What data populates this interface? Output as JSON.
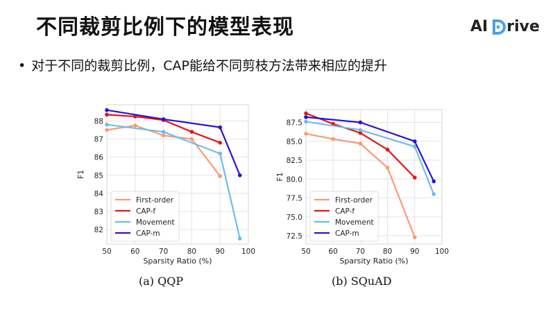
{
  "slide": {
    "title": "不同裁剪比例下的模型表现",
    "bullet": "对于不同的裁剪比例，CAP能给不同剪枝方法带来相应的提升",
    "logo_text_left": "AI",
    "logo_text_right": "rive",
    "logo_color": "#4aa0e6"
  },
  "chart_data": [
    {
      "type": "line",
      "caption": "(a)  QQP",
      "xlabel": "Sparsity Ratio (%)",
      "ylabel": "F1",
      "xlim": [
        50,
        100
      ],
      "ylim": [
        81.2,
        88.9
      ],
      "xticks": [
        50,
        60,
        70,
        80,
        90,
        100
      ],
      "yticks": [
        82,
        83,
        84,
        85,
        86,
        87,
        88
      ],
      "grid": true,
      "legend_position": "bottom-left",
      "series": [
        {
          "name": "First-order",
          "color": "#fa9a75",
          "x": [
            50,
            60,
            70,
            80,
            90
          ],
          "y": [
            87.5,
            87.75,
            87.2,
            87.0,
            84.95
          ]
        },
        {
          "name": "CAP-f",
          "color": "#e81416",
          "x": [
            50,
            60,
            70,
            80,
            90
          ],
          "y": [
            88.35,
            88.25,
            88.05,
            87.4,
            86.8
          ]
        },
        {
          "name": "Movement",
          "color": "#6cbde9",
          "x": [
            50,
            70,
            90,
            97
          ],
          "y": [
            87.8,
            87.4,
            86.2,
            81.5
          ]
        },
        {
          "name": "CAP-m",
          "color": "#2a11d9",
          "x": [
            50,
            70,
            90,
            97
          ],
          "y": [
            88.6,
            88.1,
            87.65,
            85.0
          ]
        }
      ]
    },
    {
      "type": "line",
      "caption": "(b)  SQuAD",
      "xlabel": "Sparsity Ratio (%)",
      "ylabel": "F1",
      "xlim": [
        50,
        100
      ],
      "ylim": [
        71.4,
        89.2
      ],
      "xticks": [
        50,
        60,
        70,
        80,
        90,
        100
      ],
      "yticks": [
        72.5,
        75.0,
        77.5,
        80.0,
        82.5,
        85.0,
        87.5
      ],
      "ytick_labels": [
        "72.5",
        "75.0",
        "77.5",
        "80.0",
        "82.5",
        "85.0",
        "87.5"
      ],
      "grid": true,
      "legend_position": "bottom-left",
      "series": [
        {
          "name": "First-order",
          "color": "#fa9a75",
          "x": [
            50,
            60,
            70,
            80,
            90
          ],
          "y": [
            86.0,
            85.3,
            84.7,
            81.5,
            72.3
          ]
        },
        {
          "name": "CAP-f",
          "color": "#e81416",
          "x": [
            50,
            60,
            70,
            80,
            90
          ],
          "y": [
            88.7,
            87.3,
            86.1,
            83.9,
            80.2
          ]
        },
        {
          "name": "Movement",
          "color": "#6cbde9",
          "x": [
            50,
            70,
            90,
            97
          ],
          "y": [
            87.6,
            86.5,
            84.3,
            78.0
          ]
        },
        {
          "name": "CAP-m",
          "color": "#2a11d9",
          "x": [
            50,
            70,
            90,
            97
          ],
          "y": [
            88.2,
            87.5,
            85.0,
            79.7
          ]
        }
      ]
    }
  ]
}
